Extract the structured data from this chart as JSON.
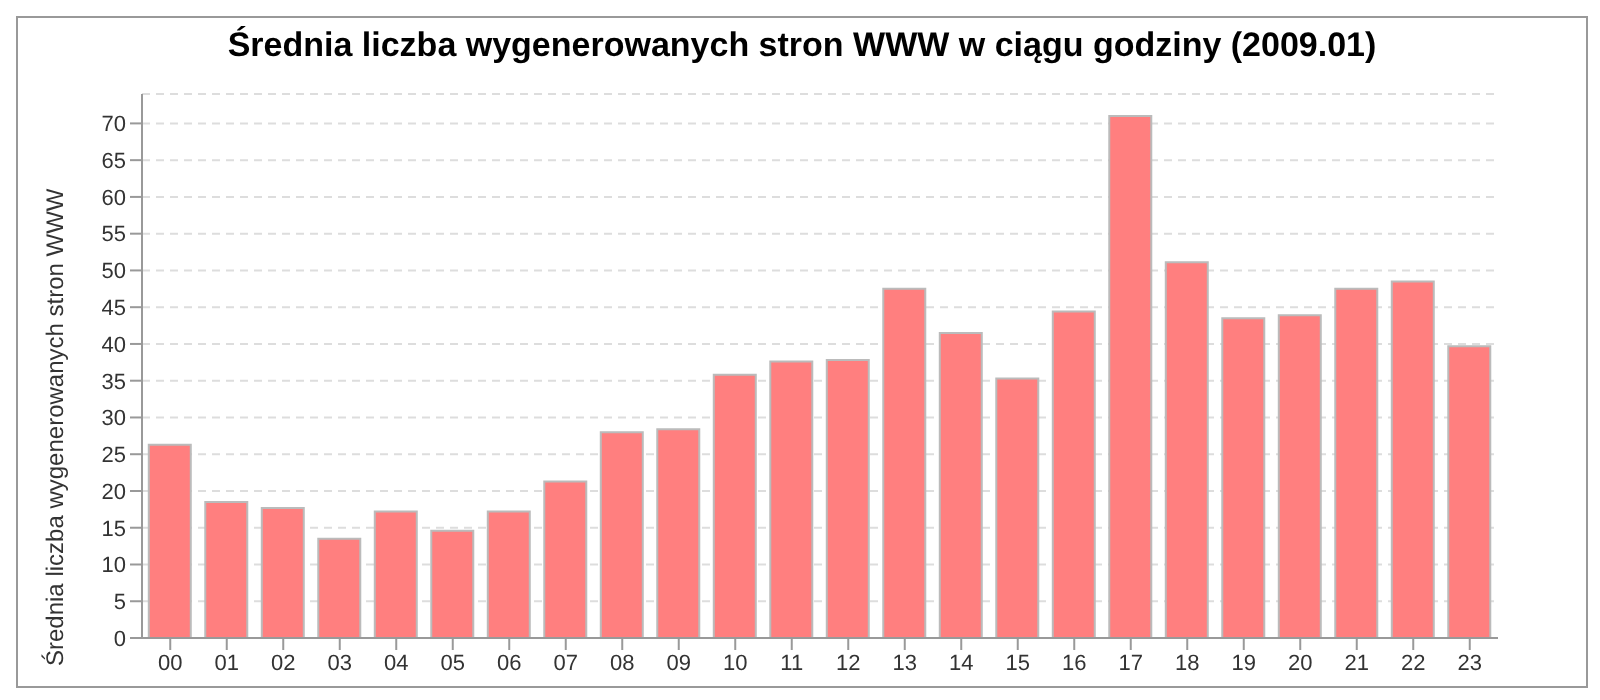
{
  "chart_data": {
    "type": "bar",
    "title": "Średnia liczba wygenerowanych stron WWW w ciągu godziny (2009.01)",
    "ylabel": "Średnia liczba wygenerowanych stron WWW",
    "categories": [
      "00",
      "01",
      "02",
      "03",
      "04",
      "05",
      "06",
      "07",
      "08",
      "09",
      "10",
      "11",
      "12",
      "13",
      "14",
      "15",
      "16",
      "17",
      "18",
      "19",
      "20",
      "21",
      "22",
      "23"
    ],
    "values": [
      26.3,
      18.5,
      17.7,
      13.5,
      17.2,
      14.6,
      17.2,
      21.3,
      28.0,
      28.4,
      35.8,
      37.6,
      37.8,
      47.5,
      41.5,
      35.3,
      44.4,
      71.0,
      51.1,
      43.5,
      43.9,
      47.5,
      48.5,
      39.7
    ],
    "color": "#ff7f7f",
    "ylim": [
      0,
      74
    ],
    "yticks": [
      0,
      5,
      10,
      15,
      20,
      25,
      30,
      35,
      40,
      45,
      50,
      55,
      60,
      65,
      70
    ],
    "grid": "y"
  }
}
